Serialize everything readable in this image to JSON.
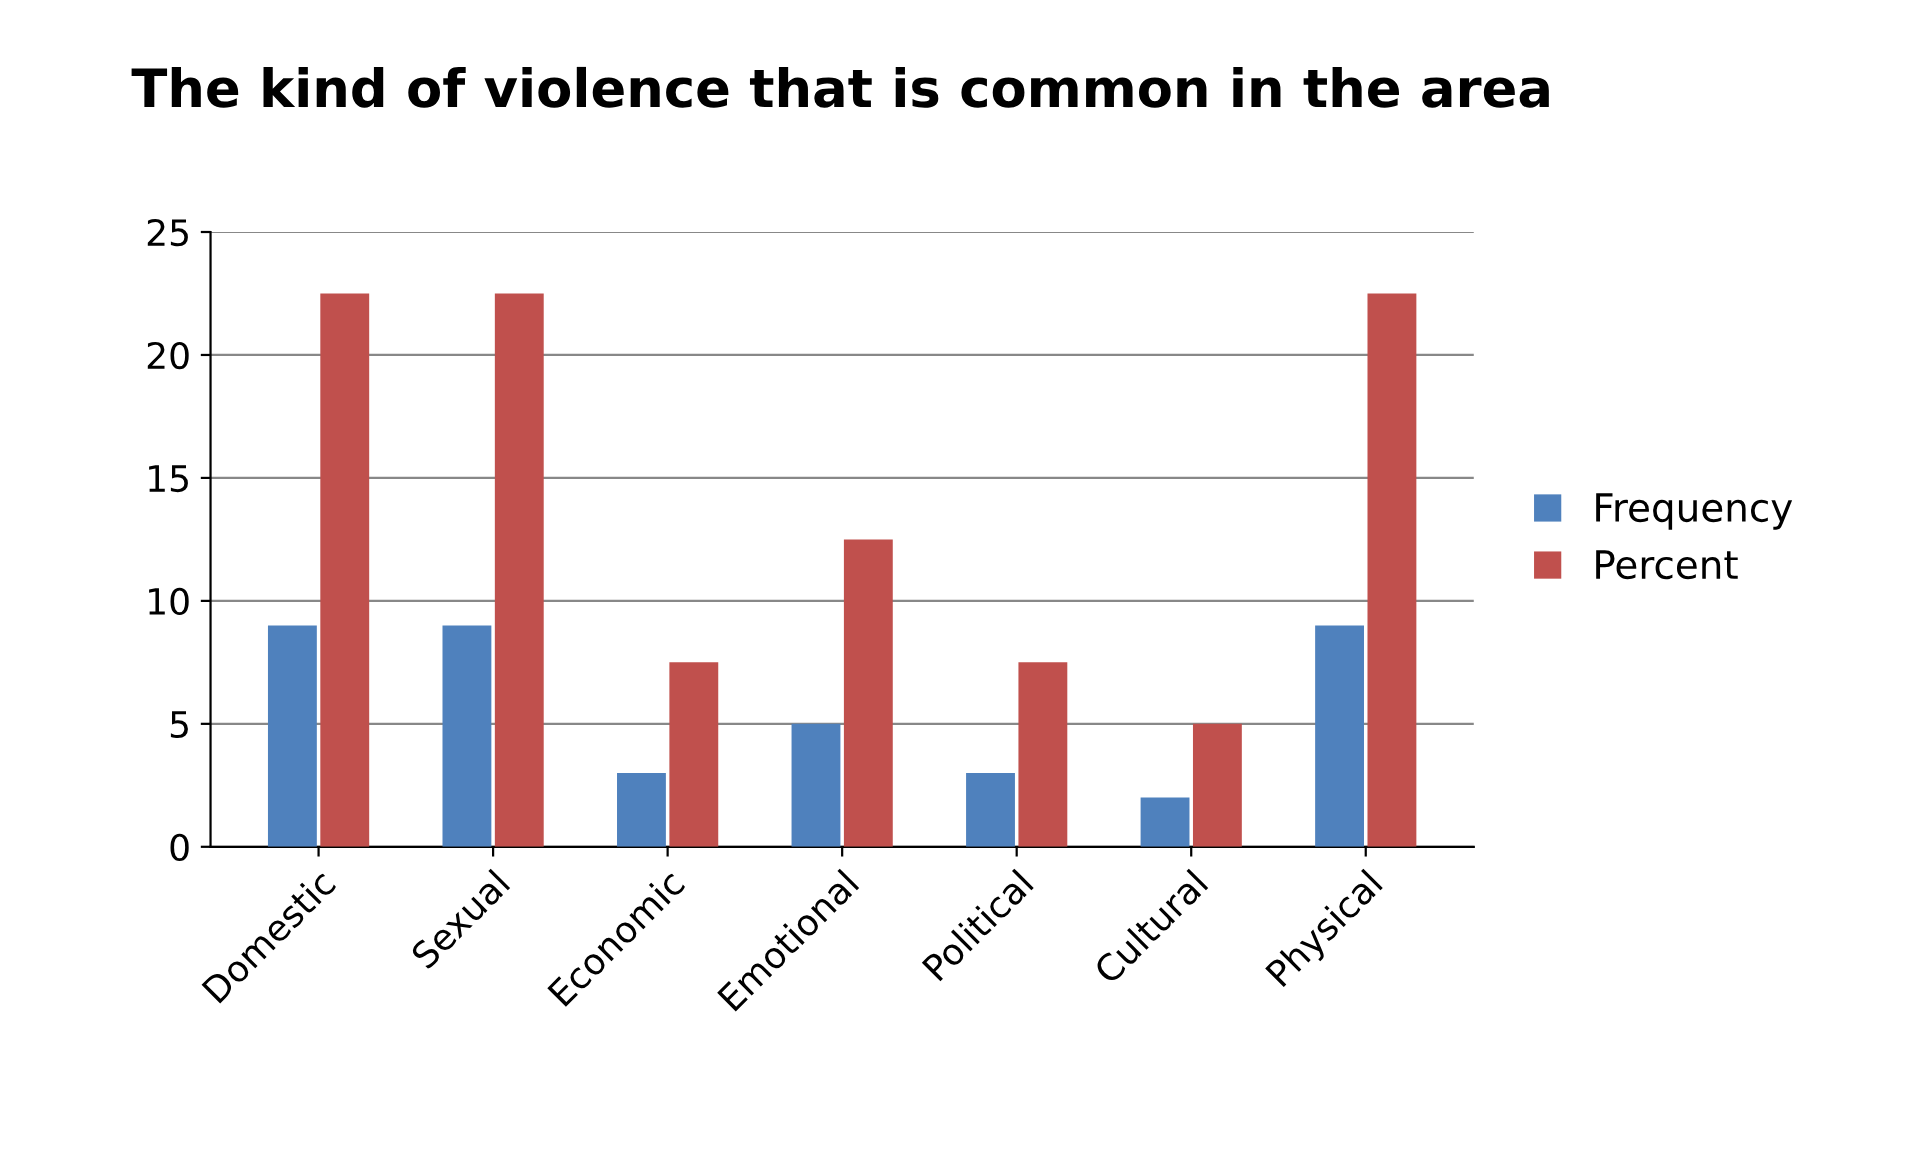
{
  "chart_data": {
    "type": "bar",
    "title": "The kind of violence that is common in the area",
    "categories": [
      "Domestic",
      "Sexual",
      "Economic",
      "Emotional",
      "Political",
      "Cultural",
      "Physical"
    ],
    "series": [
      {
        "name": "Frequency",
        "color": "#4f81bd",
        "values": [
          9,
          9,
          3,
          5,
          3,
          2,
          9
        ]
      },
      {
        "name": "Percent",
        "color": "#c0504d",
        "values": [
          22.5,
          22.5,
          7.5,
          12.5,
          7.5,
          5,
          22.5
        ]
      }
    ],
    "ylim": [
      0,
      25
    ],
    "yticks": [
      0,
      5,
      10,
      15,
      20,
      25
    ],
    "grid": "y",
    "legend": "right"
  }
}
